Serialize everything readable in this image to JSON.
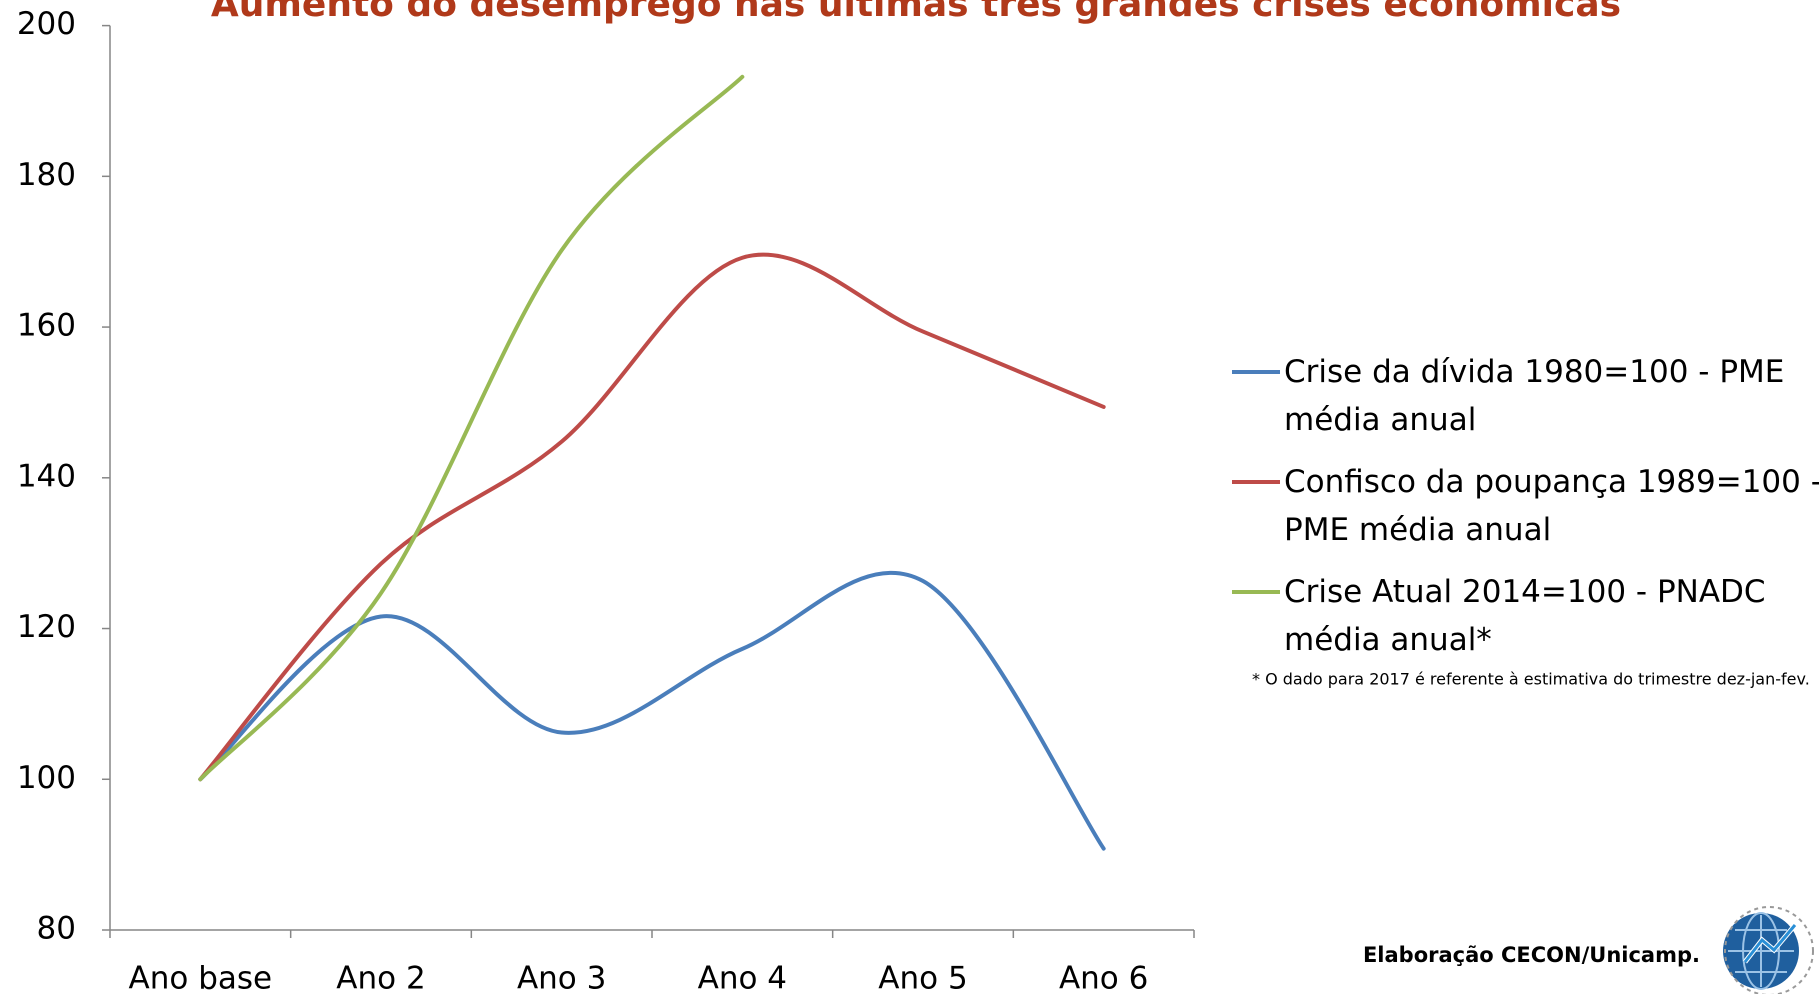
{
  "chart_data": {
    "type": "line",
    "title": "Aumento do desemprego nas últimas três grandes crises econômicas",
    "categories": [
      "Ano base",
      "Ano 2",
      "Ano 3",
      "Ano 4",
      "Ano 5",
      "Ano 6"
    ],
    "series": [
      {
        "name": "Crise da dívida 1980=100 - PME média anual",
        "color": "#4a7ebb",
        "values": [
          100,
          121.6,
          106.2,
          117.3,
          126.3,
          90.8
        ]
      },
      {
        "name": "Confisco da poupança 1989=100 - PME média anual",
        "color": "#be4b48",
        "values": [
          100,
          128.6,
          144.8,
          169.2,
          159.4,
          149.4
        ]
      },
      {
        "name": "Crise Atual 2014=100 - PNADC média anual*",
        "color": "#98b954",
        "values": [
          100,
          124.7,
          170.2,
          193.2,
          null,
          null
        ]
      }
    ],
    "ylim": [
      80,
      200
    ],
    "yticks": [
      80,
      100,
      120,
      140,
      160,
      180,
      200
    ],
    "legend": "right",
    "footnote": "* O dado para 2017 é referente à estimativa do trimestre dez-jan-fev.",
    "credit": "Elaboração CECON/Unicamp."
  }
}
